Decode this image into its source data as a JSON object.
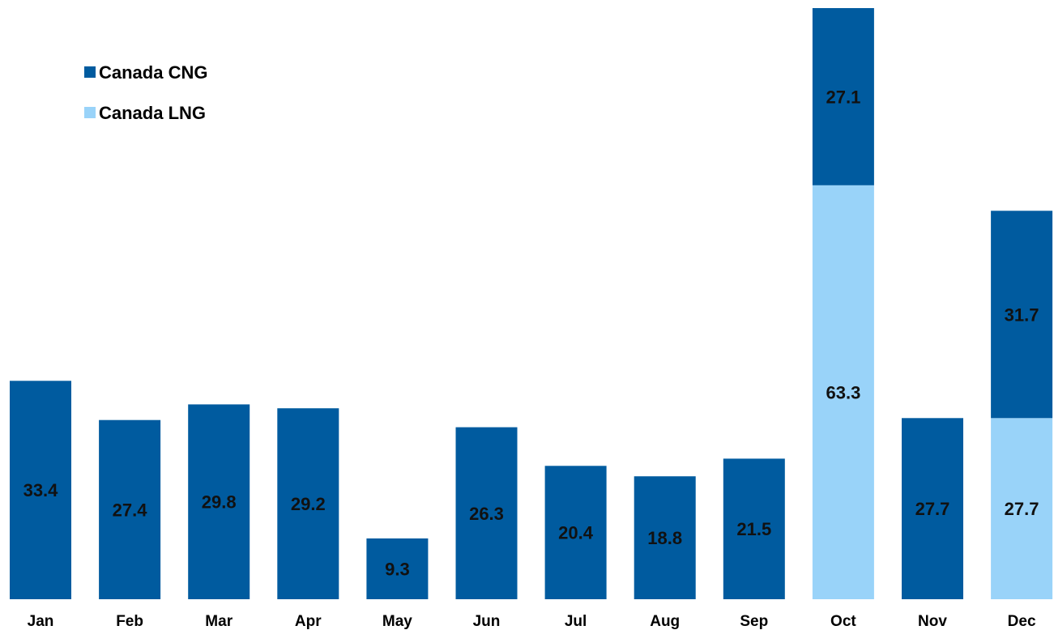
{
  "chart_data": {
    "type": "bar",
    "stacked": true,
    "title": "",
    "xlabel": "",
    "ylabel": "",
    "ylim": [
      0,
      90.4
    ],
    "grid": false,
    "legend_position": "top-left",
    "categories": [
      "Jan",
      "Feb",
      "Mar",
      "Apr",
      "May",
      "Jun",
      "Jul",
      "Aug",
      "Sep",
      "Oct",
      "Nov",
      "Dec"
    ],
    "series": [
      {
        "name": "Canada LNG",
        "color": "#99d3f9",
        "values": [
          null,
          null,
          null,
          null,
          null,
          null,
          null,
          null,
          null,
          63.3,
          null,
          27.7
        ],
        "labels": [
          "",
          "",
          "",
          "",
          "",
          "",
          "",
          "",
          "",
          "63.3",
          "",
          "27.7"
        ]
      },
      {
        "name": "Canada CNG",
        "color": "#005b9f",
        "values": [
          33.4,
          27.4,
          29.8,
          29.2,
          9.3,
          26.3,
          20.4,
          18.8,
          21.5,
          27.1,
          27.7,
          31.7
        ],
        "labels": [
          "33.4",
          "27.4",
          "29.8",
          "29.2",
          "9.3",
          "26.3",
          "20.4",
          "18.8",
          "21.5",
          "27.1",
          "27.7",
          "31.7"
        ]
      }
    ],
    "legend": [
      {
        "name": "Canada CNG",
        "color": "#005b9f"
      },
      {
        "name": "Canada LNG",
        "color": "#99d3f9"
      }
    ]
  }
}
